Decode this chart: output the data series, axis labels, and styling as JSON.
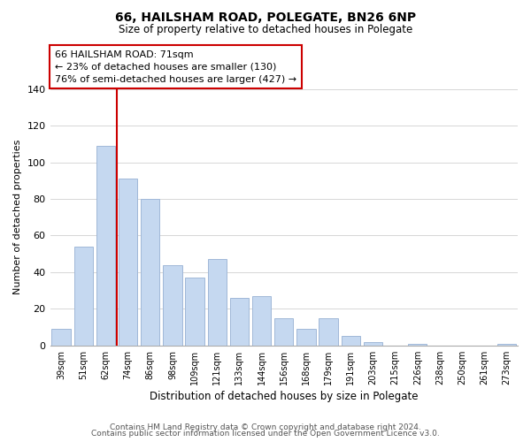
{
  "title": "66, HAILSHAM ROAD, POLEGATE, BN26 6NP",
  "subtitle": "Size of property relative to detached houses in Polegate",
  "xlabel": "Distribution of detached houses by size in Polegate",
  "ylabel": "Number of detached properties",
  "bar_labels": [
    "39sqm",
    "51sqm",
    "62sqm",
    "74sqm",
    "86sqm",
    "98sqm",
    "109sqm",
    "121sqm",
    "133sqm",
    "144sqm",
    "156sqm",
    "168sqm",
    "179sqm",
    "191sqm",
    "203sqm",
    "215sqm",
    "226sqm",
    "238sqm",
    "250sqm",
    "261sqm",
    "273sqm"
  ],
  "bar_values": [
    9,
    54,
    109,
    91,
    80,
    44,
    37,
    47,
    26,
    27,
    15,
    9,
    15,
    5,
    2,
    0,
    1,
    0,
    0,
    0,
    1
  ],
  "bar_color": "#c5d8f0",
  "bar_edge_color": "#a0b8d8",
  "highlight_color": "#cc0000",
  "annotation_lines": [
    "66 HAILSHAM ROAD: 71sqm",
    "← 23% of detached houses are smaller (130)",
    "76% of semi-detached houses are larger (427) →"
  ],
  "annotation_box_color": "#ffffff",
  "annotation_box_edge": "#cc0000",
  "ylim": [
    0,
    140
  ],
  "yticks": [
    0,
    20,
    40,
    60,
    80,
    100,
    120,
    140
  ],
  "footer_line1": "Contains HM Land Registry data © Crown copyright and database right 2024.",
  "footer_line2": "Contains public sector information licensed under the Open Government Licence v3.0."
}
